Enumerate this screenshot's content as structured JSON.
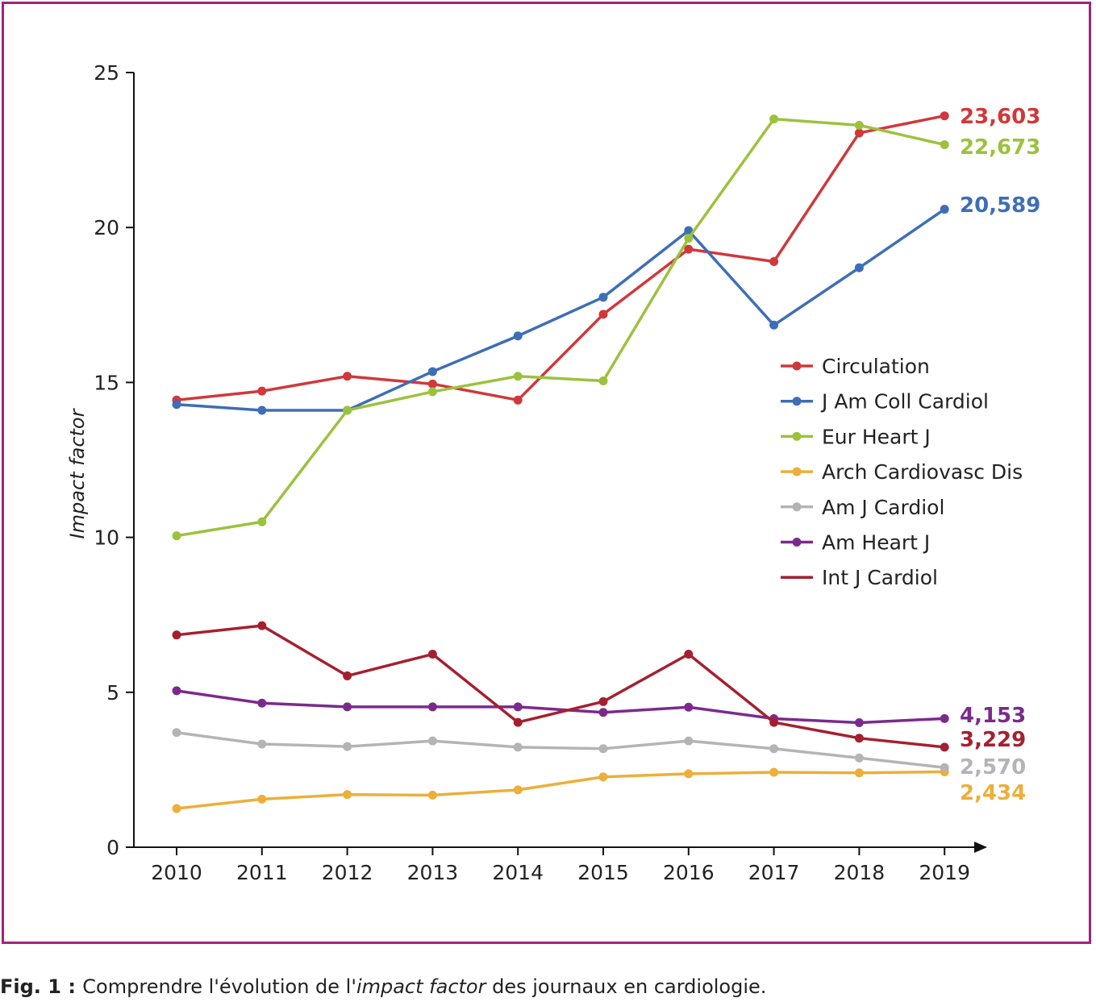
{
  "colors": {
    "frame": "#a0237e",
    "axis": "#111111",
    "text": "#222222"
  },
  "chart_data": {
    "type": "line",
    "x": [
      2010,
      2011,
      2012,
      2013,
      2014,
      2015,
      2016,
      2017,
      2018,
      2019
    ],
    "ylabel": "Impact factor",
    "xlabel": "",
    "ylim": [
      0,
      25
    ],
    "yticks": [
      0,
      5,
      10,
      15,
      20,
      25
    ],
    "grid": false,
    "legend_position": "right",
    "series": [
      {
        "name": "Circulation",
        "color": "#d0383a",
        "values": [
          14.43,
          14.72,
          15.2,
          14.95,
          14.43,
          17.2,
          19.3,
          18.9,
          23.05,
          23.603
        ],
        "end_label": "23,603"
      },
      {
        "name": "J Am Coll Cardiol",
        "color": "#3e6eb6",
        "values": [
          14.29,
          14.1,
          14.1,
          15.35,
          16.5,
          17.75,
          19.9,
          16.85,
          18.7,
          20.589
        ],
        "end_label": "20,589"
      },
      {
        "name": "Eur Heart J",
        "color": "#9cc23d",
        "values": [
          10.05,
          10.5,
          14.1,
          14.7,
          15.2,
          15.05,
          19.65,
          23.5,
          23.3,
          22.673
        ],
        "end_label": "22,673"
      },
      {
        "name": "Arch Cardiovasc Dis",
        "color": "#ecaf3a",
        "values": [
          1.25,
          1.55,
          1.7,
          1.68,
          1.85,
          2.27,
          2.37,
          2.42,
          2.4,
          2.434
        ],
        "end_label": "2,434"
      },
      {
        "name": "Am J Cardiol",
        "color": "#b4b4b4",
        "values": [
          3.7,
          3.33,
          3.25,
          3.43,
          3.23,
          3.18,
          3.43,
          3.18,
          2.88,
          2.57
        ],
        "end_label": "2,570"
      },
      {
        "name": "Am Heart J",
        "color": "#7b2a8c",
        "values": [
          5.05,
          4.65,
          4.53,
          4.53,
          4.53,
          4.35,
          4.52,
          4.15,
          4.02,
          4.153
        ],
        "end_label": "4,153"
      },
      {
        "name": "Int J Cardiol",
        "color": "#a5202f",
        "values": [
          6.85,
          7.15,
          5.53,
          6.23,
          4.03,
          4.7,
          6.23,
          4.03,
          3.52,
          3.229
        ],
        "end_label": "3,229"
      }
    ]
  },
  "caption": {
    "label": "Fig. 1",
    "sep": " : ",
    "text_before": "Comprendre l'évolution de l'",
    "text_italic": "impact factor",
    "text_after": " des journaux en cardiologie."
  }
}
